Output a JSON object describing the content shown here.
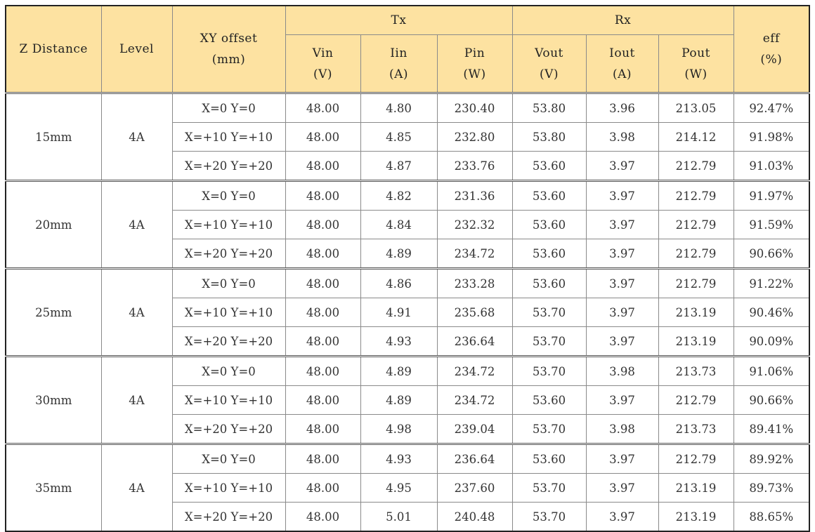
{
  "headers": {
    "z_distance": "Z Distance",
    "level": "Level",
    "xy_offset": [
      "XY offset",
      "(mm)"
    ],
    "tx": "Tx",
    "rx": "Rx",
    "eff": [
      "eff",
      "(%)"
    ],
    "vin": [
      "Vin",
      "(V)"
    ],
    "iin": [
      "Iin",
      "(A)"
    ],
    "pin": [
      "Pin",
      "(W)"
    ],
    "vout": [
      "Vout",
      "(V)"
    ],
    "iout": [
      "Iout",
      "(A)"
    ],
    "pout": [
      "Pout",
      "(W)"
    ]
  },
  "groups": [
    {
      "z": "15mm",
      "level": "4A",
      "rows": [
        [
          "X=0 Y=0",
          "48.00",
          "4.80",
          "230.40",
          "53.80",
          "3.96",
          "213.05",
          "92.47%"
        ],
        [
          "X=+10 Y=+10",
          "48.00",
          "4.85",
          "232.80",
          "53.80",
          "3.98",
          "214.12",
          "91.98%"
        ],
        [
          "X=+20 Y=+20",
          "48.00",
          "4.87",
          "233.76",
          "53.60",
          "3.97",
          "212.79",
          "91.03%"
        ]
      ]
    },
    {
      "z": "20mm",
      "level": "4A",
      "rows": [
        [
          "X=0 Y=0",
          "48.00",
          "4.82",
          "231.36",
          "53.60",
          "3.97",
          "212.79",
          "91.97%"
        ],
        [
          "X=+10 Y=+10",
          "48.00",
          "4.84",
          "232.32",
          "53.60",
          "3.97",
          "212.79",
          "91.59%"
        ],
        [
          "X=+20 Y=+20",
          "48.00",
          "4.89",
          "234.72",
          "53.60",
          "3.97",
          "212.79",
          "90.66%"
        ]
      ]
    },
    {
      "z": "25mm",
      "level": "4A",
      "rows": [
        [
          "X=0 Y=0",
          "48.00",
          "4.86",
          "233.28",
          "53.60",
          "3.97",
          "212.79",
          "91.22%"
        ],
        [
          "X=+10 Y=+10",
          "48.00",
          "4.91",
          "235.68",
          "53.70",
          "3.97",
          "213.19",
          "90.46%"
        ],
        [
          "X=+20 Y=+20",
          "48.00",
          "4.93",
          "236.64",
          "53.70",
          "3.97",
          "213.19",
          "90.09%"
        ]
      ]
    },
    {
      "z": "30mm",
      "level": "4A",
      "rows": [
        [
          "X=0 Y=0",
          "48.00",
          "4.89",
          "234.72",
          "53.70",
          "3.98",
          "213.73",
          "91.06%"
        ],
        [
          "X=+10 Y=+10",
          "48.00",
          "4.89",
          "234.72",
          "53.60",
          "3.97",
          "212.79",
          "90.66%"
        ],
        [
          "X=+20 Y=+20",
          "48.00",
          "4.98",
          "239.04",
          "53.70",
          "3.98",
          "213.73",
          "89.41%"
        ]
      ]
    },
    {
      "z": "35mm",
      "level": "4A",
      "rows": [
        [
          "X=0 Y=0",
          "48.00",
          "4.93",
          "236.64",
          "53.60",
          "3.97",
          "212.79",
          "89.92%"
        ],
        [
          "X=+10 Y=+10",
          "48.00",
          "4.95",
          "237.60",
          "53.70",
          "3.97",
          "213.19",
          "89.73%"
        ],
        [
          "X=+20 Y=+20",
          "48.00",
          "5.01",
          "240.48",
          "53.70",
          "3.97",
          "213.19",
          "88.65%"
        ]
      ]
    }
  ]
}
